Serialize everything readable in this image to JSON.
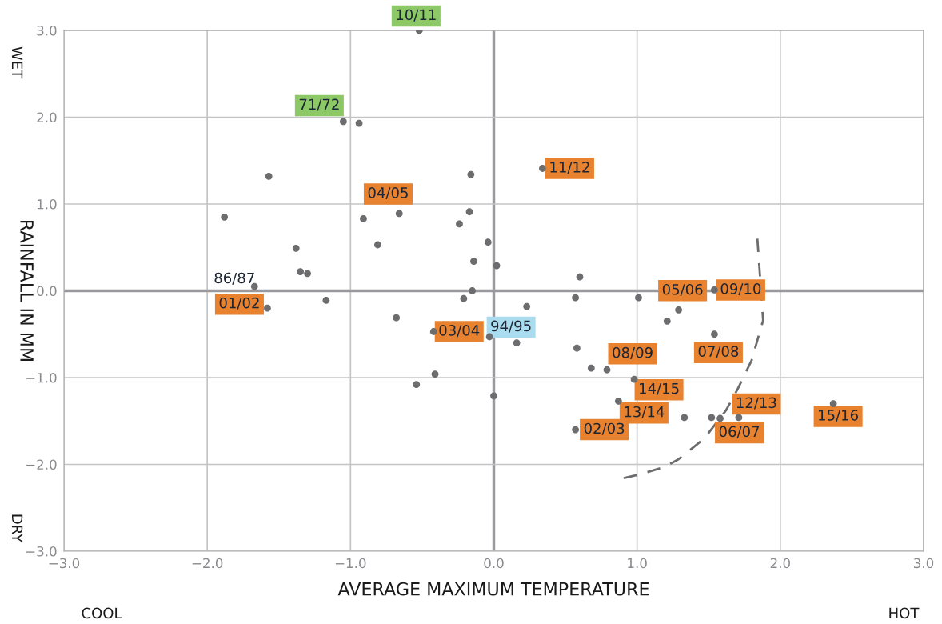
{
  "chart_data": {
    "type": "scatter",
    "xlabel": "AVERAGE MAXIMUM TEMPERATURE",
    "ylabel": "RAINFALL IN MM",
    "xlim": [
      -3,
      3
    ],
    "ylim": [
      -3,
      3
    ],
    "xticks": [
      {
        "value": -3,
        "label": "−3.0"
      },
      {
        "value": -2,
        "label": "−2.0"
      },
      {
        "value": -1,
        "label": "−1.0"
      },
      {
        "value": 0,
        "label": "0.0"
      },
      {
        "value": 1,
        "label": "1.0"
      },
      {
        "value": 2,
        "label": "2.0"
      },
      {
        "value": 3,
        "label": "3.0"
      }
    ],
    "yticks": [
      {
        "value": -3,
        "label": "−3.0"
      },
      {
        "value": -2,
        "label": "−2.0"
      },
      {
        "value": -1,
        "label": "−1.0"
      },
      {
        "value": 0,
        "label": "0.0"
      },
      {
        "value": 1,
        "label": "1.0"
      },
      {
        "value": 2,
        "label": "2.0"
      },
      {
        "value": 3,
        "label": "3.0"
      }
    ],
    "grid": true,
    "marker": "circle",
    "series": [
      {
        "color": "#6d6d70",
        "x": [
          -0.52,
          -1.05,
          -0.94,
          -1.57,
          -1.88,
          -1.38,
          -1.35,
          -1.3,
          -1.67,
          -1.58,
          -1.17,
          -0.91,
          -0.66,
          -0.81,
          -0.24,
          -0.17,
          -0.16,
          -0.04,
          0.02,
          -0.14,
          -0.15,
          -0.21,
          0.23,
          -0.68,
          -0.42,
          -0.03,
          0.16,
          -0.41,
          -0.54,
          0.0,
          0.34,
          0.6,
          0.57,
          1.01,
          1.29,
          1.21,
          1.54,
          1.54,
          0.58,
          0.68,
          0.79,
          0.98,
          0.87,
          0.57,
          1.33,
          1.52,
          1.58,
          1.71,
          2.37
        ],
        "values": [
          3.0,
          1.95,
          1.93,
          1.32,
          0.85,
          0.49,
          0.22,
          0.2,
          0.05,
          -0.2,
          -0.11,
          0.83,
          0.89,
          0.53,
          0.77,
          0.91,
          1.34,
          0.56,
          0.29,
          0.34,
          0.0,
          -0.09,
          -0.18,
          -0.31,
          -0.47,
          -0.53,
          -0.6,
          -0.96,
          -1.08,
          -1.21,
          1.41,
          0.16,
          -0.08,
          -0.08,
          -0.22,
          -0.35,
          0.01,
          -0.5,
          -0.66,
          -0.89,
          -0.91,
          -1.02,
          -1.27,
          -1.6,
          -1.46,
          -1.46,
          -1.47,
          -1.46,
          -1.3
        ]
      },
      {
        "type": "line",
        "color": "#6d6d70",
        "line_style": "dashed",
        "marker": "none",
        "x": [
          1.84,
          1.88,
          1.8,
          1.7,
          1.62,
          1.47,
          1.29,
          1.19,
          1.03,
          0.9
        ],
        "values": [
          0.6,
          -0.34,
          -0.8,
          -1.14,
          -1.38,
          -1.7,
          -1.94,
          -2.03,
          -2.11,
          -2.16
        ]
      }
    ],
    "annotations": [
      {
        "text": "10/11",
        "x": -0.52,
        "y": 3.0
      },
      {
        "text": "71/72",
        "x": -1.05,
        "y": 1.95
      },
      {
        "text": "04/05",
        "x": -0.91,
        "y": 0.83
      },
      {
        "text": "11/12",
        "x": 0.34,
        "y": 1.41
      },
      {
        "text": "86/87",
        "x": -1.67,
        "y": 0.05
      },
      {
        "text": "01/02",
        "x": -1.58,
        "y": -0.2
      },
      {
        "text": "03/04",
        "x": -0.42,
        "y": -0.47
      },
      {
        "text": "94/95",
        "x": -0.03,
        "y": -0.53
      },
      {
        "text": "05/06",
        "x": 1.29,
        "y": -0.22
      },
      {
        "text": "09/10",
        "x": 1.54,
        "y": 0.01
      },
      {
        "text": "07/08",
        "x": 1.54,
        "y": -0.5
      },
      {
        "text": "08/09",
        "x": 0.79,
        "y": -0.91
      },
      {
        "text": "14/15",
        "x": 0.98,
        "y": -1.02
      },
      {
        "text": "13/14",
        "x": 0.87,
        "y": -1.27
      },
      {
        "text": "02/03",
        "x": 0.57,
        "y": -1.6
      },
      {
        "text": "12/13",
        "x": 1.71,
        "y": -1.46
      },
      {
        "text": "06/07",
        "x": 1.58,
        "y": -1.47
      },
      {
        "text": "15/16",
        "x": 2.37,
        "y": -1.3
      },
      "WET",
      "DRY",
      "COOL",
      "HOT"
    ]
  }
}
